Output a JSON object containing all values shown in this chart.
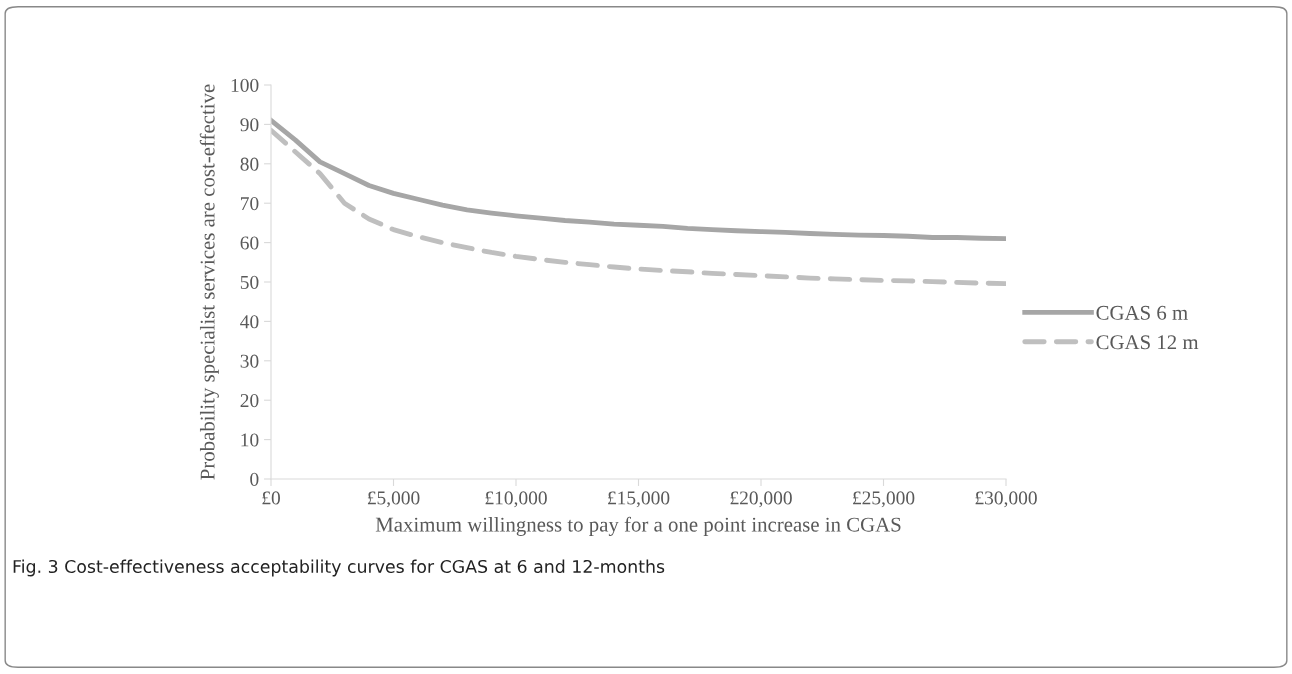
{
  "chart_data": {
    "type": "line",
    "xlabel": "Maximum willingness to pay for a one point increase in CGAS",
    "ylabel": "Probability specialist services are cost-effective",
    "x": [
      0,
      1000,
      2000,
      3000,
      4000,
      5000,
      6000,
      7000,
      8000,
      9000,
      10000,
      11000,
      12000,
      13000,
      14000,
      15000,
      16000,
      17000,
      18000,
      19000,
      20000,
      21000,
      22000,
      23000,
      24000,
      25000,
      26000,
      27000,
      28000,
      29000,
      30000
    ],
    "series": [
      {
        "name": "CGAS 6 m",
        "color": "#a6a6a6",
        "line_style": "solid",
        "values": [
          91,
          86,
          80.5,
          77.5,
          74.5,
          72.5,
          71,
          69.5,
          68.3,
          67.5,
          66.8,
          66.2,
          65.6,
          65.2,
          64.7,
          64.4,
          64.1,
          63.6,
          63.3,
          63,
          62.8,
          62.6,
          62.3,
          62.1,
          61.9,
          61.8,
          61.6,
          61.3,
          61.3,
          61.1,
          61
        ]
      },
      {
        "name": "CGAS 12 m",
        "color": "#bfbfbf",
        "line_style": "dashed",
        "values": [
          88.5,
          83,
          77.5,
          70,
          66,
          63.3,
          61.5,
          60,
          58.7,
          57.5,
          56.5,
          55.7,
          55,
          54.4,
          53.8,
          53.3,
          52.9,
          52.6,
          52.2,
          51.9,
          51.6,
          51.3,
          51,
          50.8,
          50.6,
          50.4,
          50.3,
          50.1,
          49.9,
          49.7,
          49.6
        ]
      }
    ],
    "xlim": [
      0,
      30000
    ],
    "xticks": [
      {
        "value": 0,
        "label": "£0"
      },
      {
        "value": 5000,
        "label": "£5,000"
      },
      {
        "value": 10000,
        "label": "£10,000"
      },
      {
        "value": 15000,
        "label": "£15,000"
      },
      {
        "value": 20000,
        "label": "£20,000"
      },
      {
        "value": 25000,
        "label": "£25,000"
      },
      {
        "value": 30000,
        "label": "£30,000"
      }
    ],
    "ylim": [
      0,
      100
    ],
    "yticks": [
      0,
      10,
      20,
      30,
      40,
      50,
      60,
      70,
      80,
      90,
      100
    ],
    "grid": false,
    "legend": "right",
    "marker": "none",
    "annotations": [
      "Fig. 3 Cost-effectiveness acceptability curves for CGAS at 6 and 12-months"
    ]
  }
}
